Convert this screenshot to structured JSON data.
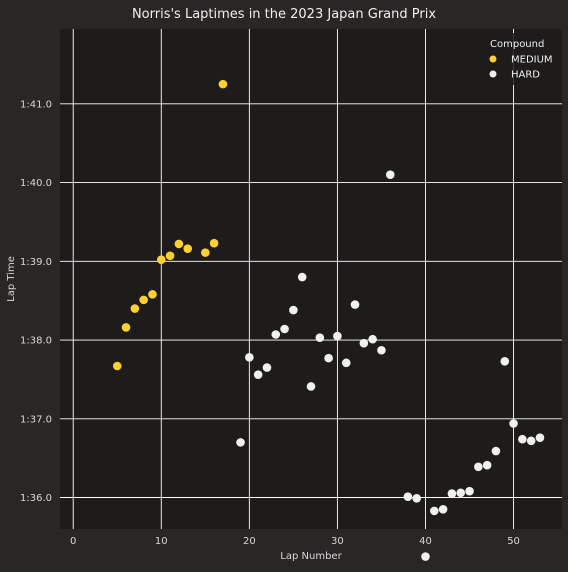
{
  "chart_data": {
    "type": "scatter",
    "title": "Norris's Laptimes in the 2023 Japan Grand Prix",
    "xlabel": "Lap Number",
    "ylabel": "Lap Time",
    "xlim": [
      -1.5,
      55.5
    ],
    "ylim": [
      95.6,
      101.95
    ],
    "xticks": [
      0,
      10,
      20,
      30,
      40,
      50
    ],
    "yticks": [
      {
        "value": 95.0,
        "label": "1:35.0"
      },
      {
        "value": 96.0,
        "label": "1:36.0"
      },
      {
        "value": 97.0,
        "label": "1:37.0"
      },
      {
        "value": 98.0,
        "label": "1:38.0"
      },
      {
        "value": 99.0,
        "label": "1:39.0"
      },
      {
        "value": 100.0,
        "label": "1:40.0"
      },
      {
        "value": 101.0,
        "label": "1:41.0"
      }
    ],
    "grid": true,
    "legend": {
      "title": "Compound",
      "position": "top-right"
    },
    "colors": {
      "figure_bg": "#292625",
      "axes_bg": "#1e1c1b",
      "grid": "#ffffff",
      "text": "#f0f0f0",
      "tick_text": "#d8d8d8"
    },
    "series": [
      {
        "name": "MEDIUM",
        "color": "#ffd12e",
        "points": [
          {
            "x": 5,
            "y": 97.67
          },
          {
            "x": 6,
            "y": 98.16
          },
          {
            "x": 7,
            "y": 98.4
          },
          {
            "x": 8,
            "y": 98.51
          },
          {
            "x": 9,
            "y": 98.58
          },
          {
            "x": 10,
            "y": 99.02
          },
          {
            "x": 11,
            "y": 99.07
          },
          {
            "x": 12,
            "y": 99.22
          },
          {
            "x": 13,
            "y": 99.16
          },
          {
            "x": 15,
            "y": 99.11
          },
          {
            "x": 16,
            "y": 99.23
          },
          {
            "x": 17,
            "y": 101.25
          }
        ]
      },
      {
        "name": "HARD",
        "color": "#f0f0ec",
        "points": [
          {
            "x": 19,
            "y": 96.7
          },
          {
            "x": 20,
            "y": 97.78
          },
          {
            "x": 21,
            "y": 97.56
          },
          {
            "x": 22,
            "y": 97.65
          },
          {
            "x": 23,
            "y": 98.07
          },
          {
            "x": 24,
            "y": 98.14
          },
          {
            "x": 25,
            "y": 98.38
          },
          {
            "x": 26,
            "y": 98.8
          },
          {
            "x": 27,
            "y": 97.41
          },
          {
            "x": 28,
            "y": 98.03
          },
          {
            "x": 29,
            "y": 97.77
          },
          {
            "x": 30,
            "y": 98.05
          },
          {
            "x": 31,
            "y": 97.71
          },
          {
            "x": 32,
            "y": 98.45
          },
          {
            "x": 33,
            "y": 97.96
          },
          {
            "x": 34,
            "y": 98.01
          },
          {
            "x": 35,
            "y": 97.87
          },
          {
            "x": 36,
            "y": 100.1
          },
          {
            "x": 38,
            "y": 96.01
          },
          {
            "x": 39,
            "y": 95.99
          },
          {
            "x": 40,
            "y": 95.25
          },
          {
            "x": 41,
            "y": 95.83
          },
          {
            "x": 42,
            "y": 95.85
          },
          {
            "x": 43,
            "y": 96.05
          },
          {
            "x": 44,
            "y": 96.06
          },
          {
            "x": 45,
            "y": 96.08
          },
          {
            "x": 46,
            "y": 96.39
          },
          {
            "x": 47,
            "y": 96.41
          },
          {
            "x": 48,
            "y": 96.59
          },
          {
            "x": 49,
            "y": 97.73
          },
          {
            "x": 50,
            "y": 96.94
          },
          {
            "x": 51,
            "y": 96.74
          },
          {
            "x": 52,
            "y": 96.72
          },
          {
            "x": 53,
            "y": 96.76
          }
        ]
      }
    ]
  }
}
